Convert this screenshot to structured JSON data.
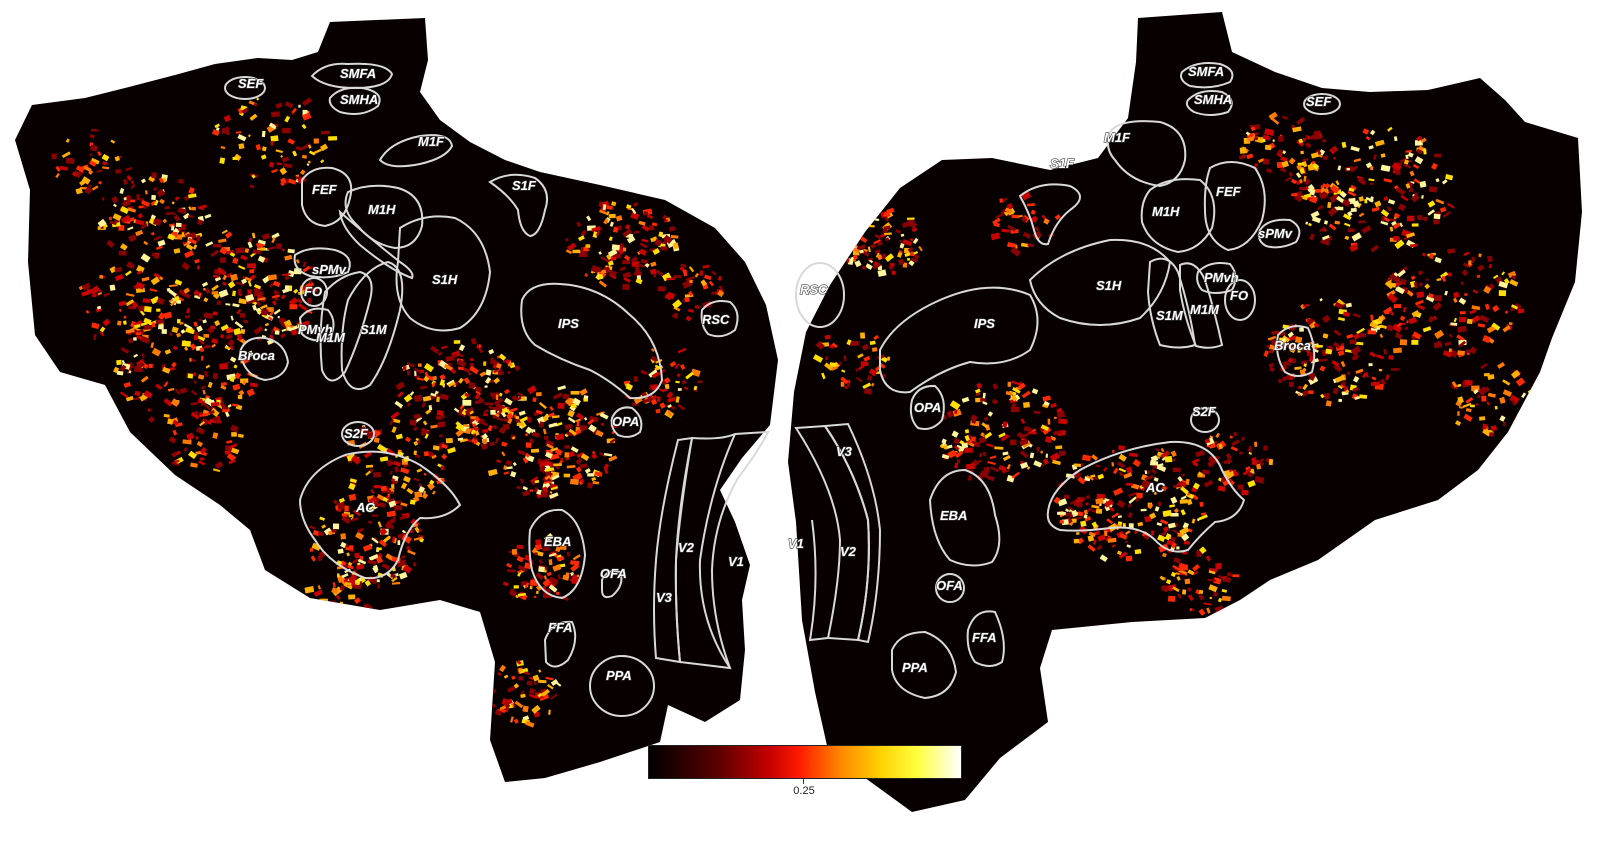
{
  "left_hemisphere": {
    "labels": {
      "sef": "SEF",
      "smfa": "SMFA",
      "smha": "SMHA",
      "m1f": "M1F",
      "s1f": "S1F",
      "fef": "FEF",
      "m1h": "M1H",
      "spmv": "sPMv",
      "fo": "FO",
      "s1h": "S1H",
      "pmvh": "PMvh",
      "m1m": "M1M",
      "s1m": "S1M",
      "broca": "Broca",
      "ips": "IPS",
      "rsc": "RSC",
      "opa": "OPA",
      "s2f": "S2F",
      "ac": "AC",
      "eba": "EBA",
      "ofa": "OFA",
      "ffa": "FFA",
      "ppa": "PPA",
      "v1": "V1",
      "v2": "V2",
      "v3": "V3"
    }
  },
  "right_hemisphere": {
    "labels": {
      "smfa": "SMFA",
      "smha": "SMHA",
      "sef": "SEF",
      "m1f": "M1F",
      "s1f": "S1F",
      "fef": "FEF",
      "m1h": "M1H",
      "spmv": "sPMv",
      "rsc": "RSC",
      "pmvh": "PMvh",
      "fo": "FO",
      "s1h": "S1H",
      "ips": "IPS",
      "s1m": "S1M",
      "m1m": "M1M",
      "broca": "Broca",
      "opa": "OPA",
      "s2f": "S2F",
      "ac": "AC",
      "eba": "EBA",
      "v1": "V1",
      "v2": "V2",
      "v3": "V3",
      "ofa": "OFA",
      "ffa": "FFA",
      "ppa": "PPA"
    }
  },
  "colorbar": {
    "colormap": "hot",
    "colors": [
      "#000000",
      "#5a0000",
      "#c00000",
      "#ff1a00",
      "#ff8c00",
      "#ffd000",
      "#ffff40",
      "#ffffff"
    ],
    "tick_value": "0.25"
  },
  "activation_colors": [
    "#8b0000",
    "#c80000",
    "#ff2a00",
    "#ff7a00",
    "#ffb000",
    "#ffe000",
    "#fff59a"
  ]
}
